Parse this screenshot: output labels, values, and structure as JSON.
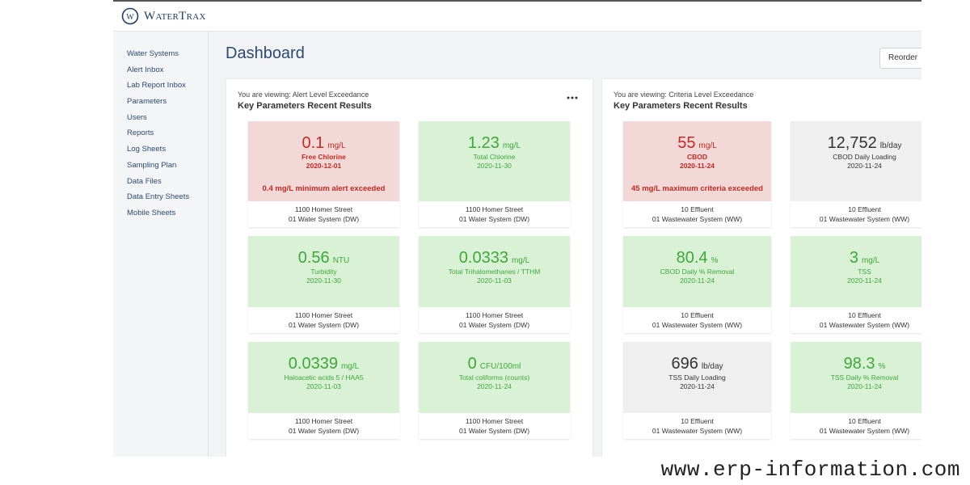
{
  "header": {
    "logo": "WaterTrax"
  },
  "sidebar": {
    "items": [
      "Water Systems",
      "Alert Inbox",
      "Lab Report Inbox",
      "Parameters",
      "Users",
      "Reports",
      "Log Sheets",
      "Sampling Plan",
      "Data Files",
      "Data Entry Sheets",
      "Mobile Sheets"
    ]
  },
  "page": {
    "title": "Dashboard",
    "button": "Reorder"
  },
  "widgets": [
    {
      "viewing": "You are viewing: Alert Level Exceedance",
      "title": "Key Parameters Recent Results",
      "cards": [
        {
          "status": "alert",
          "value": "0.1",
          "unit": "mg/L",
          "name": "Free Chlorine",
          "date": "2020-12-01",
          "alert": "0.4 mg/L minimum alert exceeded",
          "location": "1100 Homer Street",
          "system": "01 Water System (DW)"
        },
        {
          "status": "ok",
          "value": "1.23",
          "unit": "mg/L",
          "name": "Total Chlorine",
          "date": "2020-11-30",
          "location": "1100 Homer Street",
          "system": "01 Water System (DW)"
        },
        {
          "status": "ok",
          "value": "0.56",
          "unit": "NTU",
          "name": "Turbidity",
          "date": "2020-11-30",
          "location": "1100 Homer Street",
          "system": "01 Water System (DW)"
        },
        {
          "status": "ok",
          "value": "0.0333",
          "unit": "mg/L",
          "name": "Total Trihalomethanes / TTHM",
          "date": "2020-11-03",
          "location": "1100 Homer Street",
          "system": "01 Water System (DW)"
        },
        {
          "status": "ok",
          "value": "0.0339",
          "unit": "mg/L",
          "name": "Haloacetic acids 5 / HAA5",
          "date": "2020-11-03",
          "location": "1100 Homer Street",
          "system": "01 Water System (DW)"
        },
        {
          "status": "ok",
          "value": "0",
          "unit": "CFU/100ml",
          "name": "Total coliforms (counts)",
          "date": "2020-11-24",
          "location": "1100 Homer Street",
          "system": "01 Water System (DW)"
        }
      ]
    },
    {
      "viewing": "You are viewing: Criteria Level Exceedance",
      "title": "Key Parameters Recent Results",
      "cards": [
        {
          "status": "alert",
          "value": "55",
          "unit": "mg/L",
          "name": "CBOD",
          "date": "2020-11-24",
          "alert": "45 mg/L maximum criteria exceeded",
          "location": "10 Effluent",
          "system": "01 Wastewater System (WW)"
        },
        {
          "status": "none",
          "value": "12,752",
          "unit": "lb/day",
          "name": "CBOD Daily Loading",
          "date": "2020-11-24",
          "location": "10 Effluent",
          "system": "01 Wastewater System (WW)"
        },
        {
          "status": "ok",
          "value": "80.4",
          "unit": "%",
          "name": "CBOD Daily % Removal",
          "date": "2020-11-24",
          "location": "10 Effluent",
          "system": "01 Wastewater System (WW)"
        },
        {
          "status": "ok",
          "value": "3",
          "unit": "mg/L",
          "name": "TSS",
          "date": "2020-11-24",
          "location": "10 Effluent",
          "system": "01 Wastewater System (WW)"
        },
        {
          "status": "none",
          "value": "696",
          "unit": "lb/day",
          "name": "TSS Daily Loading",
          "date": "2020-11-24",
          "location": "10 Effluent",
          "system": "01 Wastewater System (WW)"
        },
        {
          "status": "ok",
          "value": "98.3",
          "unit": "%",
          "name": "TSS Daily % Removal",
          "date": "2020-11-24",
          "location": "10 Effluent",
          "system": "01 Wastewater System (WW)"
        }
      ]
    }
  ],
  "watermark": "www.erp-information.com"
}
